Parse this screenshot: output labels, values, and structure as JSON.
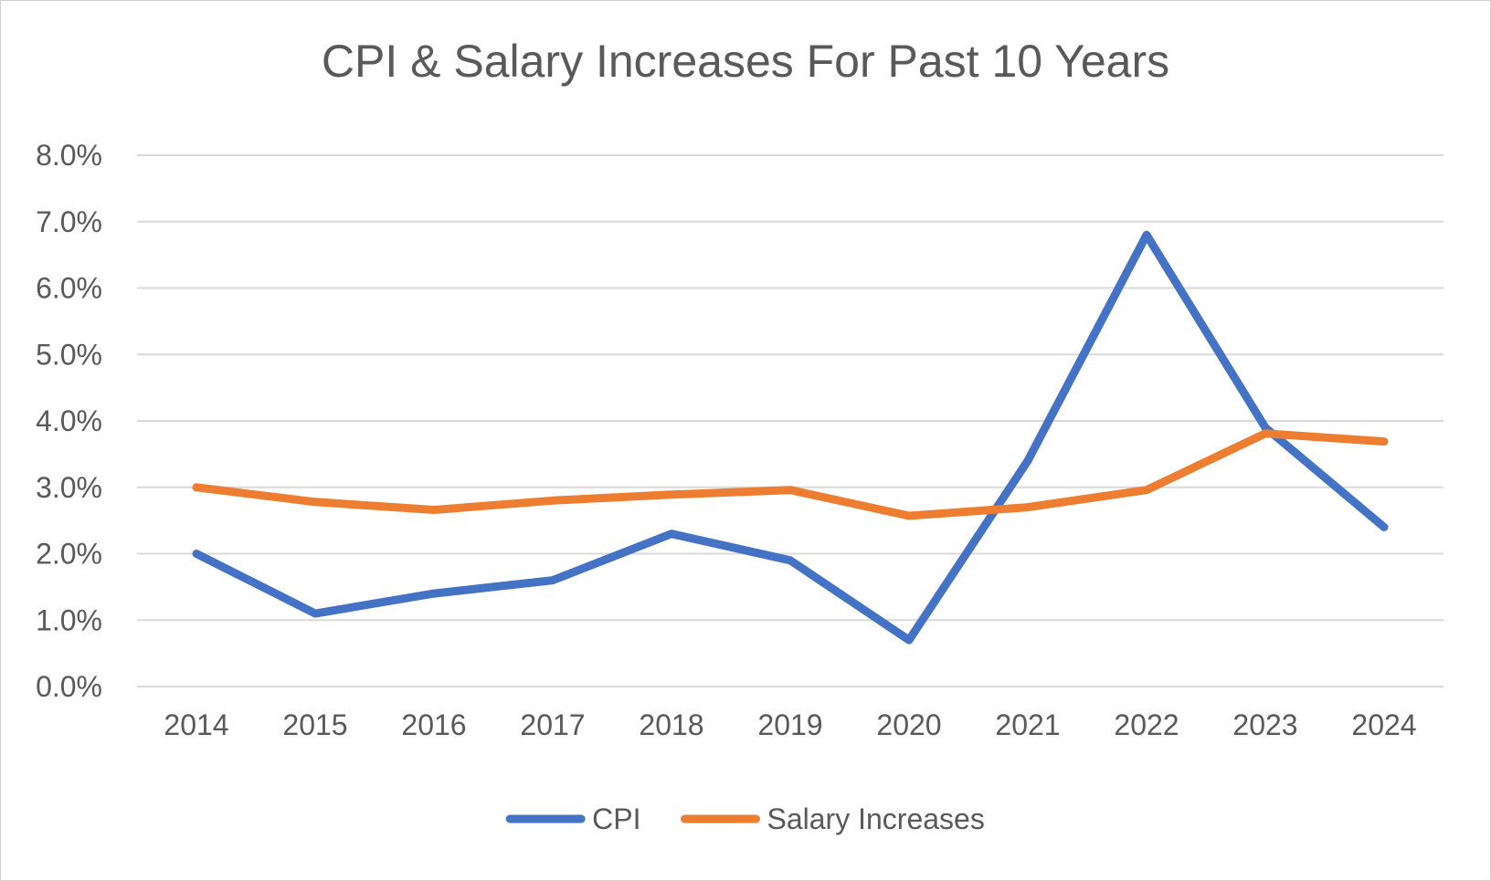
{
  "chart_data": {
    "type": "line",
    "title": "CPI & Salary Increases For Past 10 Years",
    "xlabel": "",
    "ylabel": "",
    "categories": [
      "2014",
      "2015",
      "2016",
      "2017",
      "2018",
      "2019",
      "2020",
      "2021",
      "2022",
      "2023",
      "2024"
    ],
    "series": [
      {
        "name": "CPI",
        "color": "#4472C4",
        "values": [
          2.0,
          1.1,
          1.4,
          1.6,
          2.3,
          1.9,
          0.7,
          3.4,
          6.8,
          3.9,
          2.4
        ]
      },
      {
        "name": "Salary Increases",
        "color": "#ED7D31",
        "values": [
          3.0,
          2.78,
          2.66,
          2.8,
          2.89,
          2.96,
          2.57,
          2.7,
          2.96,
          3.81,
          3.69
        ]
      }
    ],
    "ylim": [
      0,
      8
    ],
    "yticks": [
      0,
      1,
      2,
      3,
      4,
      5,
      6,
      7,
      8
    ],
    "ytick_labels": [
      "0.0%",
      "1.0%",
      "2.0%",
      "3.0%",
      "4.0%",
      "5.0%",
      "6.0%",
      "7.0%",
      "8.0%"
    ],
    "grid": true,
    "legend_position": "bottom"
  }
}
